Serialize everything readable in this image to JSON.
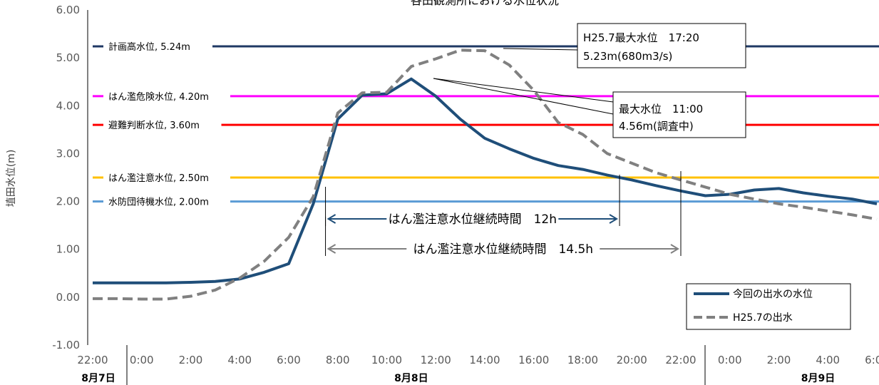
{
  "chart_data": {
    "type": "line",
    "title": "各田観測所における水位状況",
    "ylabel": "埴田水位(m)",
    "ylim": [
      -1.0,
      6.0
    ],
    "y_ticks": [
      "-1.00",
      "0.00",
      "1.00",
      "2.00",
      "3.00",
      "4.00",
      "5.00",
      "6.00"
    ],
    "x_range_hours": [
      0,
      32
    ],
    "x_ticks": [
      "22:00",
      "0:00",
      "2:00",
      "4:00",
      "6:00",
      "8:00",
      "10:00",
      "12:00",
      "14:00",
      "16:00",
      "18:00",
      "20:00",
      "22:00",
      "0:00",
      "2:00",
      "4:00",
      "6:00"
    ],
    "dates": [
      "8月7日",
      "8月8日",
      "8月9日"
    ],
    "series": [
      {
        "name": "今回の出水の水位",
        "color": "#1f4e79",
        "style": "solid",
        "x": [
          0,
          1,
          2,
          3,
          4,
          5,
          6,
          7,
          8,
          9,
          10,
          11,
          12,
          13,
          14,
          15,
          16,
          17,
          18,
          19,
          20,
          21,
          22,
          23,
          24,
          25,
          26,
          27,
          28,
          29,
          30,
          31,
          32
        ],
        "values": [
          0.3,
          0.3,
          0.3,
          0.3,
          0.31,
          0.33,
          0.38,
          0.52,
          0.7,
          1.95,
          3.72,
          4.22,
          4.25,
          4.56,
          4.2,
          3.72,
          3.32,
          3.1,
          2.9,
          2.75,
          2.67,
          2.55,
          2.45,
          2.33,
          2.22,
          2.12,
          2.15,
          2.24,
          2.27,
          2.18,
          2.11,
          2.05,
          1.95
        ]
      },
      {
        "name": "H25.7の出水",
        "color": "#808080",
        "style": "dashed",
        "x": [
          0,
          1,
          2,
          3,
          4,
          5,
          6,
          7,
          8,
          9,
          10,
          11,
          12,
          13,
          14,
          15,
          16,
          17,
          18,
          19,
          20,
          21,
          22,
          23,
          24,
          25,
          26,
          27,
          28,
          29,
          30,
          31,
          32
        ],
        "values": [
          -0.03,
          -0.03,
          -0.04,
          -0.04,
          0.02,
          0.15,
          0.4,
          0.75,
          1.25,
          2.1,
          3.85,
          4.27,
          4.28,
          4.82,
          4.98,
          5.16,
          5.15,
          4.85,
          4.32,
          3.65,
          3.4,
          3.0,
          2.8,
          2.6,
          2.45,
          2.3,
          2.15,
          2.05,
          1.95,
          1.88,
          1.8,
          1.72,
          1.63
        ]
      }
    ],
    "reference_lines": [
      {
        "label": "計画高水位, 5.24m",
        "value": 5.24,
        "color": "#1f3864"
      },
      {
        "label": "はん濫危険水位, 4.20m",
        "value": 4.2,
        "color": "#ff00ff"
      },
      {
        "label": "避難判断水位, 3.60m",
        "value": 3.6,
        "color": "#ff0000"
      },
      {
        "label": "はん濫注意水位, 2.50m",
        "value": 2.5,
        "color": "#ffc000"
      },
      {
        "label": "水防団待機水位, 2.00m",
        "value": 2.0,
        "color": "#5b9bd5"
      }
    ],
    "annotations": [
      {
        "line1": "H25.7最大水位　17:20",
        "line2": "5.23m(680m3/s)"
      },
      {
        "line1": "最大水位　11:00",
        "line2": "4.56m(調査中)"
      }
    ],
    "durations": [
      {
        "label": "はん濫注意水位継続時間　12h",
        "start_hour": 9.5,
        "end_hour": 21.5,
        "color": "#1f4e79"
      },
      {
        "label": "はん濫注意水位継続時間　14.5h",
        "start_hour": 9.5,
        "end_hour": 24.0,
        "color": "#808080"
      }
    ],
    "legend": "bottom-right",
    "grid": false
  }
}
